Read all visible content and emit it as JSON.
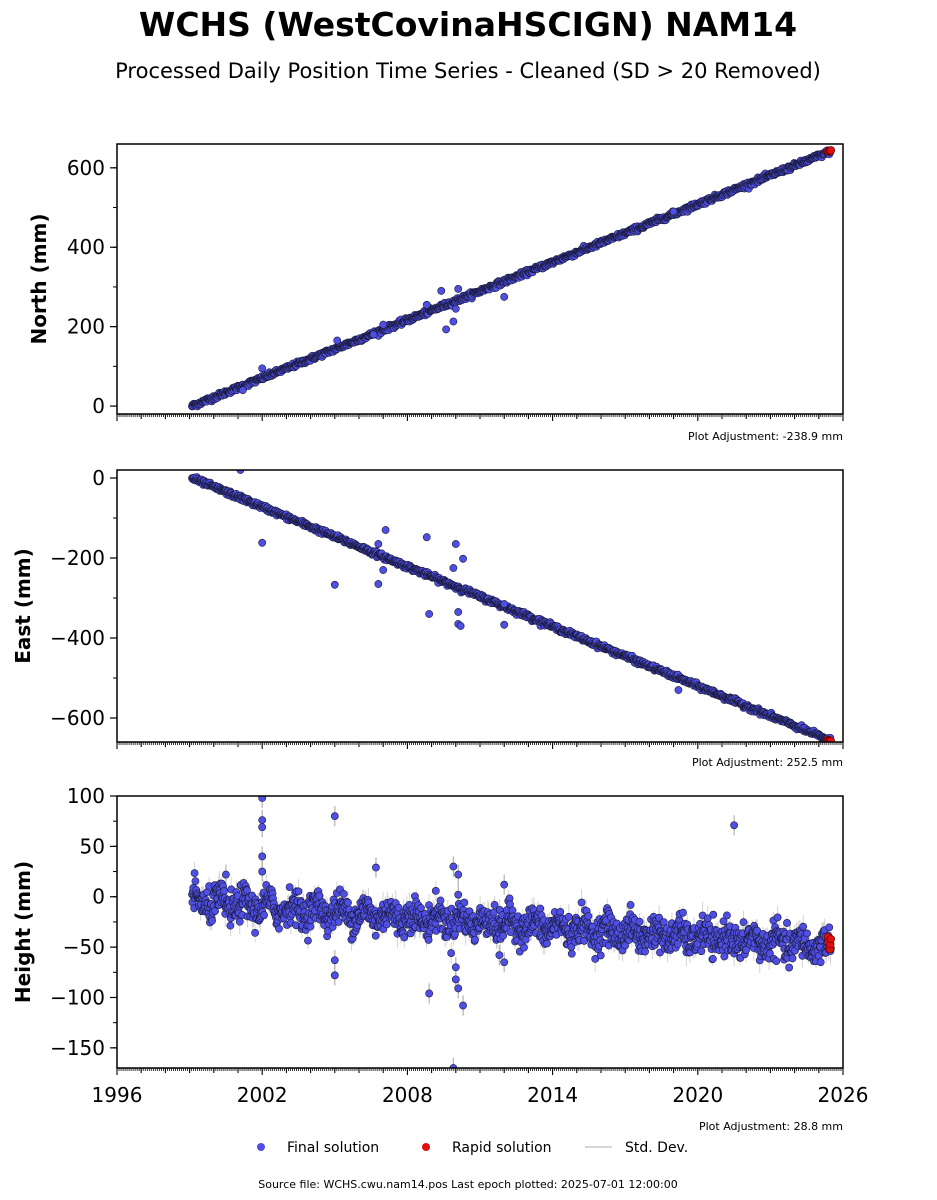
{
  "title": "WCHS (WestCovinaHSCIGN) NAM14",
  "subtitle": "Processed Daily Position Time Series - Cleaned (SD > 20 Removed)",
  "footer": "Source file: WCHS.cwu.nam14.pos  Last epoch plotted: 2025-07-01 12:00:00",
  "legend": {
    "final": "Final solution",
    "rapid": "Rapid solution",
    "std": "Std. Dev."
  },
  "colors": {
    "final_fill": "#4f4fe6",
    "final_edge": "#1a1a3a",
    "rapid_fill": "#e01010",
    "std_line": "#b0b0b0"
  },
  "chart_data": [
    {
      "type": "scatter",
      "ylabel": "North (mm)",
      "adjustment": "Plot Adjustment: -238.9 mm",
      "xlim": [
        1996,
        2026
      ],
      "ylim": [
        -20,
        660
      ],
      "yticks": [
        0,
        200,
        400,
        600
      ],
      "ytick_labels": [
        "0",
        "200",
        "400",
        "600"
      ],
      "trend": {
        "x": [
          1999.1,
          2025.5
        ],
        "y": [
          0,
          642
        ]
      },
      "noise": 3,
      "outliers": [
        {
          "x": 2005.1,
          "y": 165
        },
        {
          "x": 2006.6,
          "y": 180
        },
        {
          "x": 2007.0,
          "y": 205
        },
        {
          "x": 2009.4,
          "y": 290
        },
        {
          "x": 2009.6,
          "y": 193
        },
        {
          "x": 2009.9,
          "y": 213
        },
        {
          "x": 2010.0,
          "y": 245
        },
        {
          "x": 2010.1,
          "y": 295
        },
        {
          "x": 2012.0,
          "y": 275
        },
        {
          "x": 2008.8,
          "y": 255
        },
        {
          "x": 2001.2,
          "y": 40
        },
        {
          "x": 2002.0,
          "y": 95
        },
        {
          "x": 2019.0,
          "y": 490
        }
      ],
      "rapid": [
        {
          "x": 2025.38,
          "y": 641
        },
        {
          "x": 2025.42,
          "y": 642
        },
        {
          "x": 2025.46,
          "y": 643
        },
        {
          "x": 2025.5,
          "y": 644
        }
      ]
    },
    {
      "type": "scatter",
      "ylabel": "East (mm)",
      "adjustment": "Plot Adjustment: 252.5 mm",
      "xlim": [
        1996,
        2026
      ],
      "ylim": [
        -660,
        20
      ],
      "yticks": [
        0,
        -200,
        -400,
        -600
      ],
      "ytick_labels": [
        "0",
        "−200",
        "−400",
        "−600"
      ],
      "trend": {
        "x": [
          1999.1,
          2025.5
        ],
        "y": [
          0,
          -657
        ]
      },
      "noise": 3,
      "outliers": [
        {
          "x": 2001.1,
          "y": 20
        },
        {
          "x": 2002.0,
          "y": -162
        },
        {
          "x": 2005.0,
          "y": -267
        },
        {
          "x": 2006.8,
          "y": -265
        },
        {
          "x": 2006.8,
          "y": -165
        },
        {
          "x": 2007.1,
          "y": -130
        },
        {
          "x": 2007.0,
          "y": -230
        },
        {
          "x": 2008.8,
          "y": -148
        },
        {
          "x": 2008.9,
          "y": -340
        },
        {
          "x": 2009.9,
          "y": -225
        },
        {
          "x": 2010.0,
          "y": -165
        },
        {
          "x": 2010.3,
          "y": -202
        },
        {
          "x": 2010.1,
          "y": -365
        },
        {
          "x": 2010.1,
          "y": -335
        },
        {
          "x": 2010.2,
          "y": -370
        },
        {
          "x": 2012.0,
          "y": -367
        },
        {
          "x": 2012.0,
          "y": -315
        },
        {
          "x": 2019.2,
          "y": -530
        }
      ],
      "rapid": [
        {
          "x": 2025.38,
          "y": -655
        },
        {
          "x": 2025.42,
          "y": -656
        },
        {
          "x": 2025.46,
          "y": -657
        },
        {
          "x": 2025.5,
          "y": -658
        }
      ]
    },
    {
      "type": "scatter",
      "ylabel": "Height (mm)",
      "adjustment": "Plot Adjustment: 28.8 mm",
      "xlim": [
        1996,
        2026
      ],
      "ylim": [
        -170,
        100
      ],
      "yticks": [
        100,
        50,
        0,
        -50,
        -100,
        -150
      ],
      "ytick_labels": [
        "100",
        "50",
        "0",
        "−50",
        "−100",
        "−150"
      ],
      "trend": {
        "x": [
          1999.1,
          2025.5
        ],
        "y": [
          -5,
          -50
        ]
      },
      "noise": 8,
      "outliers": [
        {
          "x": 2002.0,
          "y": 98
        },
        {
          "x": 2002.0,
          "y": 76
        },
        {
          "x": 2002.0,
          "y": 69
        },
        {
          "x": 2002.0,
          "y": 40
        },
        {
          "x": 2002.0,
          "y": 25
        },
        {
          "x": 2005.0,
          "y": 80
        },
        {
          "x": 2005.0,
          "y": -78
        },
        {
          "x": 2005.0,
          "y": -63
        },
        {
          "x": 2006.7,
          "y": 29
        },
        {
          "x": 2008.9,
          "y": -96
        },
        {
          "x": 2009.9,
          "y": 30
        },
        {
          "x": 2010.1,
          "y": 22
        },
        {
          "x": 2010.1,
          "y": 2
        },
        {
          "x": 2010.0,
          "y": -70
        },
        {
          "x": 2010.0,
          "y": -82
        },
        {
          "x": 2010.1,
          "y": -91
        },
        {
          "x": 2010.3,
          "y": -108
        },
        {
          "x": 2009.9,
          "y": -170
        },
        {
          "x": 2012.0,
          "y": 12
        },
        {
          "x": 2012.0,
          "y": -65
        },
        {
          "x": 2011.8,
          "y": -58
        },
        {
          "x": 2021.5,
          "y": 71
        },
        {
          "x": 2000.5,
          "y": 22
        }
      ],
      "rapid": [
        {
          "x": 2025.38,
          "y": -40
        },
        {
          "x": 2025.4,
          "y": -45
        },
        {
          "x": 2025.42,
          "y": -50
        },
        {
          "x": 2025.46,
          "y": -52
        },
        {
          "x": 2025.48,
          "y": -47
        },
        {
          "x": 2025.5,
          "y": -42
        }
      ]
    }
  ],
  "x_axis": {
    "ticks": [
      1996,
      2002,
      2008,
      2014,
      2020,
      2026
    ],
    "tick_labels": [
      "1996",
      "2002",
      "2008",
      "2014",
      "2020",
      "2026"
    ]
  }
}
